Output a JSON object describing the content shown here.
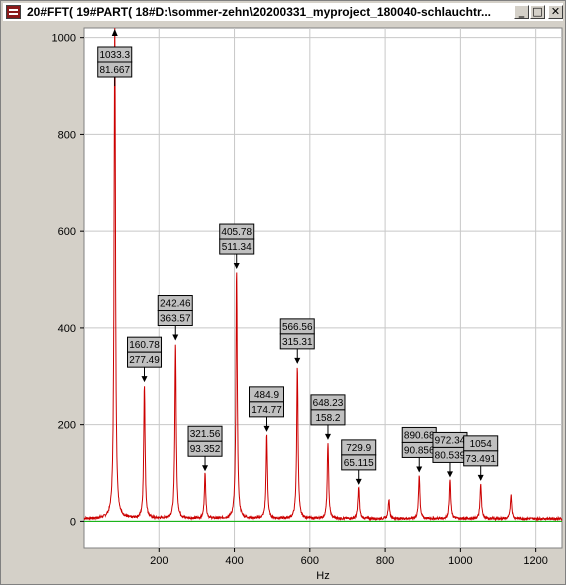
{
  "window": {
    "title": "20#FFT( 19#PART( 18#D:\\sommer-zehn\\20200331_myproject_180040-schlauchtr...",
    "icon": "app-icon",
    "buttons": [
      {
        "name": "minimize-button",
        "glyph": "_"
      },
      {
        "name": "maximize-button",
        "glyph": "□"
      },
      {
        "name": "close-button",
        "glyph": "✕"
      }
    ]
  },
  "colors": {
    "spectrum": "#cc0000",
    "baseline": "#00b000",
    "background": "#ffffff",
    "label_fill": "#c0c0c0"
  },
  "chart_data": {
    "type": "line",
    "xlabel": "Hz",
    "ylabel": "",
    "xlim": [
      0,
      1270
    ],
    "ylim": [
      -55,
      1020
    ],
    "xticks": [
      200,
      400,
      600,
      800,
      1000,
      1200
    ],
    "yticks": [
      0,
      200,
      400,
      600,
      800,
      1000
    ],
    "grid": true,
    "peaks": [
      {
        "freq": 81.667,
        "amp": 1033.3,
        "freq_label": "81.667",
        "amp_label": "1033.3",
        "offscale": true
      },
      {
        "freq": 160.78,
        "amp": 277.49,
        "freq_label": "277.49",
        "amp_label": "160.78"
      },
      {
        "freq": 242.46,
        "amp": 363.57,
        "freq_label": "363.57",
        "amp_label": "242.46"
      },
      {
        "freq": 321.56,
        "amp": 93.352,
        "freq_label": "93.352",
        "amp_label": "321.56"
      },
      {
        "freq": 405.78,
        "amp": 511.34,
        "freq_label": "511.34",
        "amp_label": "405.78"
      },
      {
        "freq": 484.9,
        "amp": 174.77,
        "freq_label": "174.77",
        "amp_label": "484.9"
      },
      {
        "freq": 566.56,
        "amp": 315.31,
        "freq_label": "315.31",
        "amp_label": "566.56"
      },
      {
        "freq": 648.23,
        "amp": 158.2,
        "freq_label": "158.2",
        "amp_label": "648.23"
      },
      {
        "freq": 729.9,
        "amp": 65.115,
        "freq_label": "65.115",
        "amp_label": "729.9"
      },
      {
        "freq": 890.68,
        "amp": 90.856,
        "freq_label": "90.856",
        "amp_label": "890.68"
      },
      {
        "freq": 972.34,
        "amp": 80.539,
        "freq_label": "80.539",
        "amp_label": "972.34"
      },
      {
        "freq": 1054,
        "amp": 73.491,
        "freq_label": "73.491",
        "amp_label": "1054"
      }
    ],
    "minor_peaks": [
      {
        "freq": 810,
        "amp": 40
      },
      {
        "freq": 1135,
        "amp": 50
      }
    ]
  }
}
